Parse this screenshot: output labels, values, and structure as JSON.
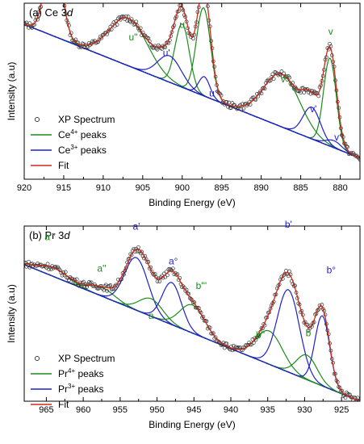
{
  "colors": {
    "ce4": "#1a8c1a",
    "ce3": "#1f1fcc",
    "fit": "#cc2a1a",
    "points": "#333333",
    "baseline": "#000000"
  },
  "chart_data": [
    {
      "type": "line",
      "panel_label": "(a) Ce 3",
      "panel_label_italic": "d",
      "xlabel": "Binding Energy (eV)",
      "ylabel": "Intensity (a.u)",
      "xlim": [
        920,
        877.5
      ],
      "x_ticks": [
        920,
        915,
        910,
        905,
        900,
        895,
        890,
        885,
        880
      ],
      "ylim": [
        0,
        1
      ],
      "baseline": {
        "x": [
          920,
          877.5
        ],
        "y": [
          0.88,
          0.12
        ]
      },
      "legend": [
        {
          "kind": "marker",
          "text": "XP Spectrum"
        },
        {
          "kind": "line",
          "color_key": "ce4",
          "text": "Ce",
          "sup": "4+",
          "suffix": " peaks"
        },
        {
          "kind": "line",
          "color_key": "ce3",
          "text": "Ce",
          "sup": "3+",
          "suffix": " peaks"
        },
        {
          "kind": "line",
          "color_key": "fit",
          "text": "Fit"
        }
      ],
      "peaks": [
        {
          "label": "u'''",
          "center": 916.3,
          "height": 0.53,
          "width": 1.0,
          "group": "ce4",
          "label_x": 915.0,
          "label_y": 1.03
        },
        {
          "label": "u''",
          "center": 906.8,
          "height": 0.27,
          "width": 2.4,
          "group": "ce4",
          "label_x": 906.2,
          "label_y": 0.79
        },
        {
          "label": "u",
          "center": 900.0,
          "height": 0.36,
          "width": 0.9,
          "group": "ce4",
          "label_x": 900.0,
          "label_y": 0.86
        },
        {
          "label": "u'''",
          "center": 897.3,
          "height": 0.5,
          "width": 0.9,
          "group": "ce4",
          "label_x": 896.7,
          "label_y": 1.03
        },
        {
          "label": "u'",
          "center": 901.6,
          "height": 0.15,
          "width": 1.5,
          "group": "ce3",
          "label_x": 902.0,
          "label_y": 0.7
        },
        {
          "label": "u°",
          "center": 897.2,
          "height": 0.11,
          "width": 0.7,
          "group": "ce3",
          "label_x": 896.0,
          "label_y": 0.47
        },
        {
          "label": "v''",
          "center": 887.4,
          "height": 0.3,
          "width": 2.3,
          "group": "ce4",
          "label_x": 887.0,
          "label_y": 0.55
        },
        {
          "label": "v",
          "center": 881.3,
          "height": 0.5,
          "width": 0.8,
          "group": "ce4",
          "label_x": 881.2,
          "label_y": 0.82
        },
        {
          "label": "v'",
          "center": 883.6,
          "height": 0.18,
          "width": 1.1,
          "group": "ce3",
          "label_x": 883.4,
          "label_y": 0.38
        },
        {
          "label": "v°",
          "center": 880.8,
          "height": 0.04,
          "width": 1.0,
          "group": "ce3",
          "label_x": 880.2,
          "label_y": 0.22
        }
      ]
    },
    {
      "type": "line",
      "panel_label": "(b) Pr 3",
      "panel_label_italic": "d",
      "xlabel": "Binding Energy (eV)",
      "ylabel": "Intensity (a.u)",
      "xlim": [
        968,
        922.5
      ],
      "x_ticks": [
        965,
        960,
        955,
        950,
        945,
        940,
        935,
        930,
        925
      ],
      "ylim": [
        0,
        1
      ],
      "baseline": {
        "x": [
          968,
          922.5
        ],
        "y": [
          0.78,
          0.0
        ]
      },
      "legend": [
        {
          "kind": "marker",
          "text": "XP Spectrum"
        },
        {
          "kind": "line",
          "color_key": "ce4",
          "text": "Pr",
          "sup": "4+",
          "suffix": " peaks"
        },
        {
          "kind": "line",
          "color_key": "ce3",
          "text": "Pr",
          "sup": "3+",
          "suffix": " peaks"
        },
        {
          "kind": "line",
          "color_key": "fit",
          "text": "Fit"
        }
      ],
      "peaks": [
        {
          "label": "a'''",
          "center": 964.0,
          "height": 0.05,
          "width": 2.0,
          "group": "ce4",
          "label_x": 964.5,
          "label_y": 0.92
        },
        {
          "label": "a''",
          "center": 957.5,
          "height": 0.05,
          "width": 1.8,
          "group": "ce4",
          "label_x": 957.5,
          "label_y": 0.74
        },
        {
          "label": "a'",
          "center": 952.8,
          "height": 0.3,
          "width": 1.6,
          "group": "ce3",
          "label_x": 952.8,
          "label_y": 0.98
        },
        {
          "label": "a",
          "center": 950.8,
          "height": 0.1,
          "width": 1.6,
          "group": "ce4",
          "label_x": 950.8,
          "label_y": 0.47
        },
        {
          "label": "a°",
          "center": 948.0,
          "height": 0.24,
          "width": 1.3,
          "group": "ce3",
          "label_x": 947.8,
          "label_y": 0.78
        },
        {
          "label": "b'''",
          "center": 945.2,
          "height": 0.16,
          "width": 1.7,
          "group": "ce4",
          "label_x": 944.0,
          "label_y": 0.64
        },
        {
          "label": "b''",
          "center": 934.8,
          "height": 0.19,
          "width": 1.8,
          "group": "ce4",
          "label_x": 936.0,
          "label_y": 0.36
        },
        {
          "label": "b'",
          "center": 932.2,
          "height": 0.47,
          "width": 1.5,
          "group": "ce3",
          "label_x": 932.2,
          "label_y": 0.99
        },
        {
          "label": "b",
          "center": 929.7,
          "height": 0.14,
          "width": 1.4,
          "group": "ce4",
          "label_x": 929.5,
          "label_y": 0.37
        },
        {
          "label": "b°",
          "center": 927.6,
          "height": 0.4,
          "width": 1.0,
          "group": "ce3",
          "label_x": 926.4,
          "label_y": 0.73
        }
      ]
    }
  ]
}
